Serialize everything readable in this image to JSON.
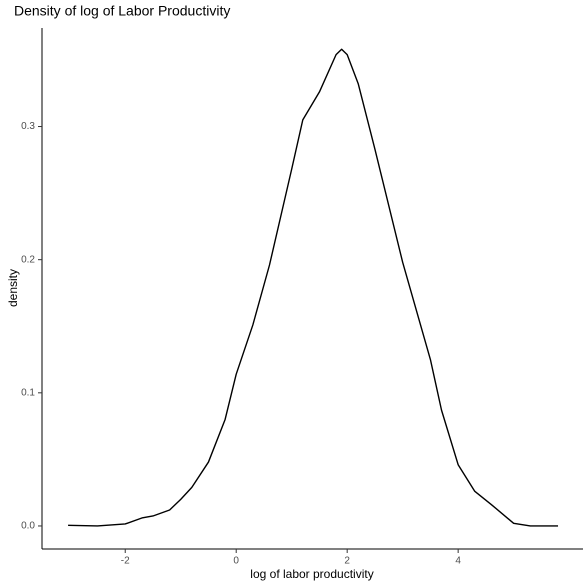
{
  "chart_data": {
    "type": "line",
    "title": "Density of log of Labor Productivity",
    "x_label": "log of labor productivity",
    "y_label": "density",
    "x": [
      -3.03,
      -2.5,
      -2.0,
      -1.7,
      -1.5,
      -1.2,
      -1.0,
      -0.8,
      -0.5,
      -0.2,
      0,
      0.3,
      0.6,
      1.0,
      1.2,
      1.5,
      1.8,
      1.9,
      2.0,
      2.2,
      2.5,
      3.0,
      3.5,
      3.7,
      4.0,
      4.3,
      4.6,
      5.0,
      5.3,
      5.8
    ],
    "series": [
      {
        "name": "density",
        "color": "#000000",
        "values": [
          0.0005,
          0.0,
          0.0015,
          0.006,
          0.0075,
          0.012,
          0.02,
          0.029,
          0.048,
          0.08,
          0.114,
          0.151,
          0.196,
          0.268,
          0.305,
          0.326,
          0.354,
          0.358,
          0.354,
          0.332,
          0.283,
          0.198,
          0.125,
          0.087,
          0.046,
          0.026,
          0.016,
          0.002,
          0.0,
          0.0
        ]
      }
    ],
    "xlim": [
      -3.5,
      6.25
    ],
    "ylim": [
      -0.0173,
      0.374
    ],
    "xticks": [
      -2,
      0,
      2,
      4
    ],
    "yticks": [
      {
        "value": 0,
        "label": "0.0"
      },
      0.1,
      0.2,
      0.3
    ],
    "grid": false
  }
}
